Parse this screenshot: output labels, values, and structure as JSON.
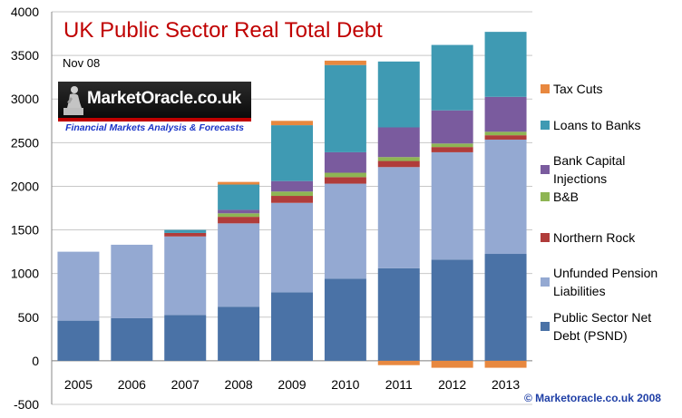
{
  "chart_data": {
    "type": "bar",
    "stacked": true,
    "title": "UK Public Sector Real Total Debt",
    "subtitle": "Nov 08",
    "copyright": "© Marketoracle.co.uk  2008",
    "categories": [
      "2005",
      "2006",
      "2007",
      "2008",
      "2009",
      "2010",
      "2011",
      "2012",
      "2013"
    ],
    "ylim": [
      -500,
      4000
    ],
    "yticks": [
      -500,
      0,
      500,
      1000,
      1500,
      2000,
      2500,
      3000,
      3500,
      4000
    ],
    "grid": true,
    "legend_position": "right",
    "series": [
      {
        "name": "Public Sector Net Debt (PSND)",
        "color": "#4a72a6",
        "values": [
          460,
          490,
          525,
          620,
          785,
          940,
          1060,
          1160,
          1225
        ]
      },
      {
        "name": "Unfunded Pension Liabilities",
        "color": "#94a9d2",
        "values": [
          790,
          840,
          900,
          955,
          1025,
          1090,
          1160,
          1230,
          1310
        ]
      },
      {
        "name": "Northern Rock",
        "color": "#b03c3a",
        "values": [
          0,
          0,
          40,
          75,
          80,
          75,
          70,
          60,
          50
        ]
      },
      {
        "name": "B&B",
        "color": "#8eb553",
        "values": [
          0,
          0,
          0,
          40,
          50,
          50,
          45,
          40,
          40
        ]
      },
      {
        "name": "Bank Capital Injections",
        "color": "#7a5b9e",
        "values": [
          0,
          0,
          0,
          40,
          120,
          235,
          340,
          380,
          400
        ]
      },
      {
        "name": "Loans to  Banks",
        "color": "#3f9ab3",
        "values": [
          0,
          0,
          35,
          290,
          640,
          1000,
          755,
          750,
          745
        ]
      },
      {
        "name": "Tax Cuts",
        "color": "#e8883f",
        "values": [
          0,
          0,
          0,
          30,
          50,
          50,
          -50,
          -80,
          -80
        ]
      }
    ]
  },
  "watermark": {
    "name": "MarketOracle.co.uk",
    "tagline": "Financial Markets Analysis & Forecasts"
  }
}
